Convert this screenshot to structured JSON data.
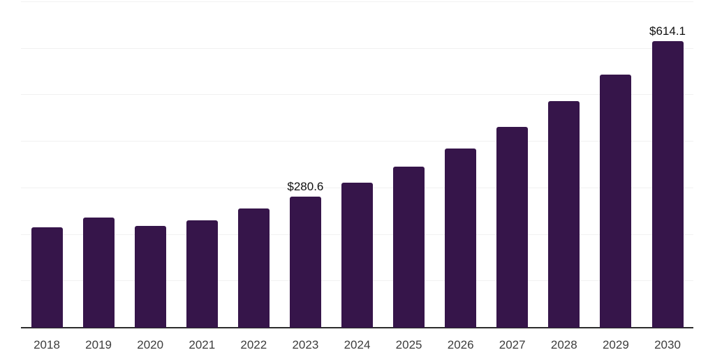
{
  "chart": {
    "background_color": "#ffffff",
    "bar_color": "#36154A",
    "axis_line_color": "#2b2b2b",
    "gridline_color": "#f1f1f1",
    "tick_label_color": "#3d3d3d",
    "data_label_color": "#0f0f0f"
  },
  "chart_data": {
    "type": "bar",
    "title": "",
    "xlabel": "",
    "ylabel": "",
    "categories": [
      "2018",
      "2019",
      "2020",
      "2021",
      "2022",
      "2023",
      "2024",
      "2025",
      "2026",
      "2027",
      "2028",
      "2029",
      "2030"
    ],
    "values": [
      214,
      235,
      218,
      230,
      255,
      280.6,
      310,
      345,
      384,
      430,
      486,
      543,
      614.1
    ],
    "data_labels": {
      "2023": "$280.6",
      "2030": "$614.1"
    },
    "ylim": [
      0,
      700
    ],
    "gridline_interval": 100,
    "grid": true,
    "legend": false,
    "y_axis_labels_visible": false,
    "currency_prefix": "$"
  }
}
